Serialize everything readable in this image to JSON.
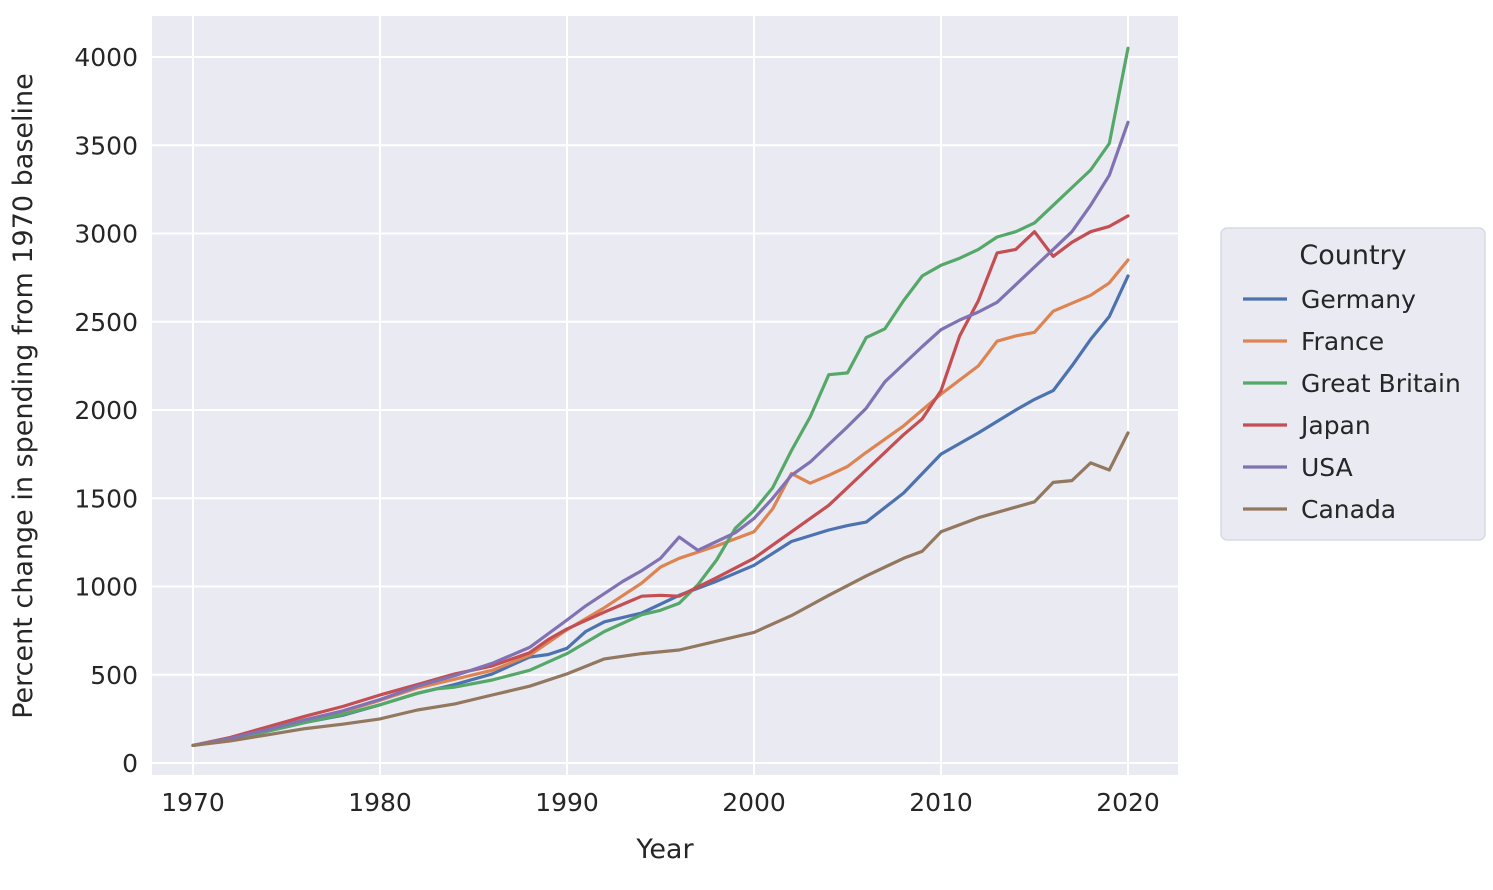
{
  "chart_data": {
    "type": "line",
    "title": "",
    "xlabel": "Year",
    "ylabel": "Percent change in spending from 1970 baseline",
    "xlim": [
      1970,
      2020
    ],
    "ylim": [
      0,
      4000
    ],
    "x_ticks": [
      1970,
      1980,
      1990,
      2000,
      2010,
      2020
    ],
    "y_ticks": [
      0,
      500,
      1000,
      1500,
      2000,
      2500,
      3000,
      3500,
      4000
    ],
    "grid": true,
    "plot_background": "#eaeaf2",
    "gridline_color": "#ffffff",
    "legend": {
      "title": "Country",
      "position": "right"
    },
    "series": [
      {
        "name": "Germany",
        "color": "#4c72b0",
        "points": [
          [
            1970,
            100
          ],
          [
            1972,
            130
          ],
          [
            1974,
            180
          ],
          [
            1976,
            230
          ],
          [
            1978,
            270
          ],
          [
            1980,
            330
          ],
          [
            1982,
            395
          ],
          [
            1984,
            445
          ],
          [
            1986,
            505
          ],
          [
            1988,
            600
          ],
          [
            1989,
            615
          ],
          [
            1990,
            650
          ],
          [
            1991,
            745
          ],
          [
            1992,
            800
          ],
          [
            1994,
            850
          ],
          [
            1996,
            950
          ],
          [
            1998,
            1030
          ],
          [
            2000,
            1120
          ],
          [
            2002,
            1255
          ],
          [
            2004,
            1320
          ],
          [
            2005,
            1345
          ],
          [
            2006,
            1365
          ],
          [
            2008,
            1530
          ],
          [
            2010,
            1750
          ],
          [
            2012,
            1870
          ],
          [
            2014,
            2000
          ],
          [
            2015,
            2060
          ],
          [
            2016,
            2110
          ],
          [
            2017,
            2250
          ],
          [
            2018,
            2400
          ],
          [
            2019,
            2530
          ],
          [
            2020,
            2760
          ]
        ]
      },
      {
        "name": "France",
        "color": "#dd8452",
        "points": [
          [
            1970,
            100
          ],
          [
            1972,
            140
          ],
          [
            1974,
            195
          ],
          [
            1976,
            245
          ],
          [
            1978,
            290
          ],
          [
            1980,
            355
          ],
          [
            1982,
            425
          ],
          [
            1984,
            475
          ],
          [
            1986,
            525
          ],
          [
            1988,
            610
          ],
          [
            1990,
            755
          ],
          [
            1992,
            880
          ],
          [
            1994,
            1020
          ],
          [
            1995,
            1110
          ],
          [
            1996,
            1160
          ],
          [
            1998,
            1230
          ],
          [
            2000,
            1310
          ],
          [
            2001,
            1440
          ],
          [
            2002,
            1640
          ],
          [
            2003,
            1585
          ],
          [
            2004,
            1630
          ],
          [
            2005,
            1680
          ],
          [
            2006,
            1760
          ],
          [
            2008,
            1910
          ],
          [
            2010,
            2090
          ],
          [
            2012,
            2250
          ],
          [
            2013,
            2390
          ],
          [
            2014,
            2420
          ],
          [
            2015,
            2440
          ],
          [
            2016,
            2560
          ],
          [
            2018,
            2650
          ],
          [
            2019,
            2720
          ],
          [
            2020,
            2850
          ]
        ]
      },
      {
        "name": "Great Britain",
        "color": "#55a868",
        "points": [
          [
            1970,
            100
          ],
          [
            1972,
            135
          ],
          [
            1974,
            180
          ],
          [
            1976,
            230
          ],
          [
            1978,
            275
          ],
          [
            1980,
            330
          ],
          [
            1982,
            395
          ],
          [
            1983,
            420
          ],
          [
            1984,
            430
          ],
          [
            1986,
            470
          ],
          [
            1988,
            525
          ],
          [
            1990,
            620
          ],
          [
            1992,
            745
          ],
          [
            1994,
            840
          ],
          [
            1995,
            865
          ],
          [
            1996,
            905
          ],
          [
            1997,
            1010
          ],
          [
            1998,
            1150
          ],
          [
            1999,
            1330
          ],
          [
            2000,
            1430
          ],
          [
            2001,
            1560
          ],
          [
            2002,
            1770
          ],
          [
            2003,
            1960
          ],
          [
            2004,
            2200
          ],
          [
            2005,
            2210
          ],
          [
            2006,
            2410
          ],
          [
            2007,
            2460
          ],
          [
            2008,
            2620
          ],
          [
            2009,
            2760
          ],
          [
            2010,
            2820
          ],
          [
            2011,
            2860
          ],
          [
            2012,
            2910
          ],
          [
            2013,
            2980
          ],
          [
            2014,
            3010
          ],
          [
            2015,
            3060
          ],
          [
            2016,
            3160
          ],
          [
            2017,
            3260
          ],
          [
            2018,
            3360
          ],
          [
            2019,
            3510
          ],
          [
            2020,
            4050
          ]
        ]
      },
      {
        "name": "Japan",
        "color": "#c44e52",
        "points": [
          [
            1970,
            100
          ],
          [
            1972,
            145
          ],
          [
            1974,
            205
          ],
          [
            1976,
            265
          ],
          [
            1978,
            320
          ],
          [
            1980,
            385
          ],
          [
            1982,
            445
          ],
          [
            1984,
            505
          ],
          [
            1986,
            550
          ],
          [
            1988,
            625
          ],
          [
            1989,
            700
          ],
          [
            1990,
            760
          ],
          [
            1992,
            855
          ],
          [
            1993,
            900
          ],
          [
            1994,
            945
          ],
          [
            1995,
            950
          ],
          [
            1996,
            945
          ],
          [
            1998,
            1050
          ],
          [
            2000,
            1160
          ],
          [
            2002,
            1310
          ],
          [
            2004,
            1460
          ],
          [
            2006,
            1660
          ],
          [
            2008,
            1860
          ],
          [
            2009,
            1950
          ],
          [
            2010,
            2110
          ],
          [
            2011,
            2420
          ],
          [
            2012,
            2620
          ],
          [
            2013,
            2890
          ],
          [
            2014,
            2910
          ],
          [
            2015,
            3010
          ],
          [
            2016,
            2870
          ],
          [
            2017,
            2950
          ],
          [
            2018,
            3010
          ],
          [
            2019,
            3040
          ],
          [
            2020,
            3100
          ]
        ]
      },
      {
        "name": "USA",
        "color": "#8172b3",
        "points": [
          [
            1970,
            100
          ],
          [
            1972,
            140
          ],
          [
            1974,
            190
          ],
          [
            1976,
            245
          ],
          [
            1978,
            295
          ],
          [
            1980,
            360
          ],
          [
            1982,
            435
          ],
          [
            1984,
            495
          ],
          [
            1986,
            565
          ],
          [
            1988,
            655
          ],
          [
            1990,
            810
          ],
          [
            1991,
            890
          ],
          [
            1992,
            960
          ],
          [
            1993,
            1030
          ],
          [
            1994,
            1090
          ],
          [
            1995,
            1160
          ],
          [
            1996,
            1280
          ],
          [
            1997,
            1205
          ],
          [
            1998,
            1255
          ],
          [
            1999,
            1305
          ],
          [
            2000,
            1385
          ],
          [
            2001,
            1500
          ],
          [
            2002,
            1630
          ],
          [
            2003,
            1705
          ],
          [
            2004,
            1805
          ],
          [
            2005,
            1905
          ],
          [
            2006,
            2010
          ],
          [
            2007,
            2160
          ],
          [
            2008,
            2260
          ],
          [
            2009,
            2360
          ],
          [
            2010,
            2455
          ],
          [
            2011,
            2510
          ],
          [
            2012,
            2555
          ],
          [
            2013,
            2610
          ],
          [
            2014,
            2710
          ],
          [
            2015,
            2810
          ],
          [
            2016,
            2910
          ],
          [
            2017,
            3010
          ],
          [
            2018,
            3160
          ],
          [
            2019,
            3330
          ],
          [
            2020,
            3630
          ]
        ]
      },
      {
        "name": "Canada",
        "color": "#937860",
        "points": [
          [
            1970,
            100
          ],
          [
            1972,
            125
          ],
          [
            1974,
            160
          ],
          [
            1976,
            195
          ],
          [
            1978,
            220
          ],
          [
            1980,
            250
          ],
          [
            1982,
            300
          ],
          [
            1984,
            335
          ],
          [
            1986,
            385
          ],
          [
            1988,
            435
          ],
          [
            1990,
            505
          ],
          [
            1992,
            590
          ],
          [
            1994,
            620
          ],
          [
            1996,
            640
          ],
          [
            1998,
            690
          ],
          [
            2000,
            740
          ],
          [
            2002,
            835
          ],
          [
            2004,
            950
          ],
          [
            2006,
            1060
          ],
          [
            2008,
            1160
          ],
          [
            2009,
            1200
          ],
          [
            2010,
            1310
          ],
          [
            2012,
            1390
          ],
          [
            2014,
            1450
          ],
          [
            2015,
            1480
          ],
          [
            2016,
            1590
          ],
          [
            2017,
            1600
          ],
          [
            2018,
            1700
          ],
          [
            2019,
            1660
          ],
          [
            2020,
            1870
          ]
        ]
      }
    ]
  }
}
